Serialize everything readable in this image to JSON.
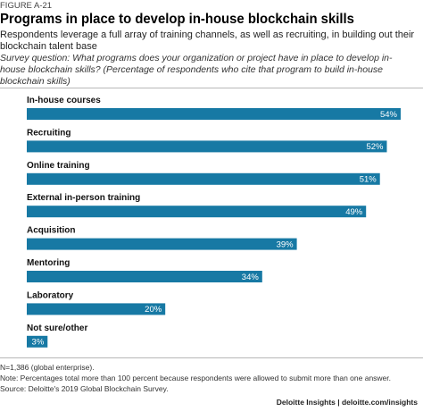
{
  "figure_label": "FIGURE A-21",
  "title": "Programs in place to develop in-house blockchain skills",
  "subtitle": "Respondents leverage a full array of training channels, as well as recruiting, in building out their blockchain talent base",
  "question": "Survey question: What programs does your organization or project have in place to develop in-house blockchain skills? (Percentage of respondents who cite that program to build in-house blockchain skills)",
  "notes": [
    "N=1,386 (global enterprise).",
    "Note: Percentages total more than 100 percent because respondents were allowed to submit more than one answer.",
    "Source: Deloitte's 2019 Global Blockchain Survey."
  ],
  "credit": "Deloitte Insights | deloitte.com/insights",
  "colors": {
    "bar": "#1779a4",
    "text": "#111111"
  },
  "chart_data": {
    "type": "bar",
    "orientation": "horizontal",
    "categories": [
      "In-house courses",
      "Recruiting",
      "Online training",
      "External in-person training",
      "Acquisition",
      "Mentoring",
      "Laboratory",
      "Not sure/other"
    ],
    "values": [
      54,
      52,
      51,
      49,
      39,
      34,
      20,
      3
    ],
    "value_labels": [
      "54%",
      "52%",
      "51%",
      "49%",
      "39%",
      "34%",
      "20%",
      "3%"
    ],
    "unit": "%",
    "xlim": [
      0,
      55
    ],
    "grid": false,
    "legend": false
  }
}
